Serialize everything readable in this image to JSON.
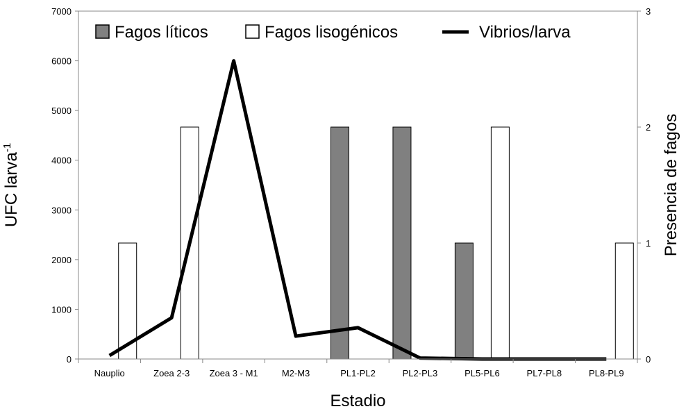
{
  "chart_data": {
    "type": "bar",
    "categories": [
      "Nauplio",
      "Zoea 2-3",
      "Zoea 3 - M1",
      "M2-M3",
      "PL1-PL2",
      "PL2-PL3",
      "PL5-PL6",
      "PL7-PL8",
      "PL8-PL9"
    ],
    "series": [
      {
        "name": "Fagos líticos",
        "type": "bar",
        "axis": "right",
        "color": "#808080",
        "values": [
          0,
          0,
          0,
          0,
          2,
          2,
          1,
          0,
          0
        ]
      },
      {
        "name": "Fagos lisogénicos",
        "type": "bar",
        "axis": "right",
        "color": "#ffffff",
        "values": [
          1,
          2,
          0,
          0,
          0,
          0,
          2,
          0,
          1
        ]
      },
      {
        "name": "Vibrios/larva",
        "type": "line",
        "axis": "left",
        "color": "#000000",
        "values": [
          70,
          830,
          6000,
          460,
          630,
          20,
          0,
          0,
          0
        ]
      }
    ],
    "xlabel": "Estadio",
    "ylabel": "UFC larva",
    "ylabel_superscript": "-1",
    "y2label": "Presencia de fagos",
    "ylim": [
      0,
      7000
    ],
    "y2lim": [
      0,
      3
    ],
    "yticks": [
      0,
      1000,
      2000,
      3000,
      4000,
      5000,
      6000,
      7000
    ],
    "y2ticks": [
      0,
      1,
      2,
      3
    ],
    "legend_position": "top",
    "grid": false
  }
}
